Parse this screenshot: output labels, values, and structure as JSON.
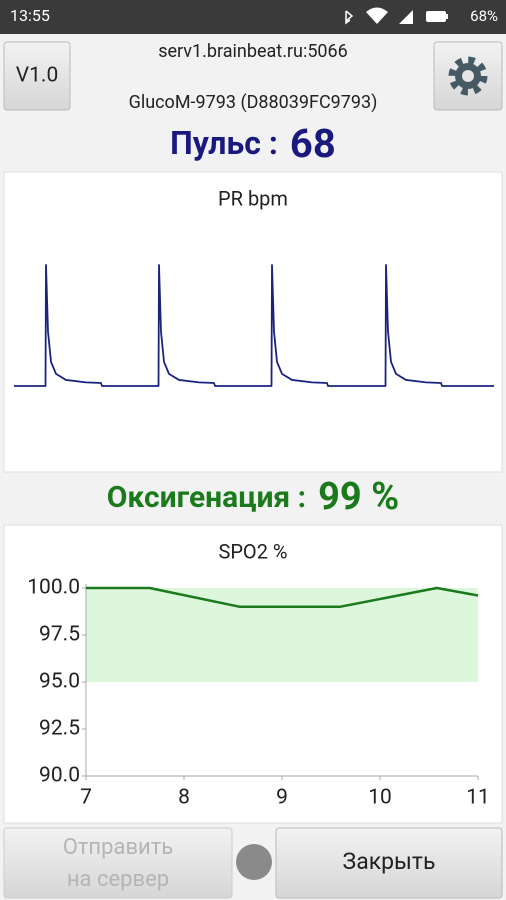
{
  "status_bar": {
    "time": "13:55",
    "battery": "68%"
  },
  "header": {
    "version_button": "V1.0",
    "server": "serv1.brainbeat.ru:5066",
    "device": "GlucoM-9793 (D88039FC9793)"
  },
  "pulse": {
    "label": "Пульс :",
    "value": 68
  },
  "oxygen": {
    "label": "Оксигенация :",
    "value": "99 %"
  },
  "buttons": {
    "send": [
      "Отправить",
      "на сервер"
    ],
    "close": "Закрыть"
  },
  "chart_data": [
    {
      "type": "line",
      "title": "PR bpm",
      "color": "#1a237e",
      "x": [
        0,
        31.5,
        32,
        34,
        37,
        42,
        52,
        72,
        87,
        88,
        144.5,
        145,
        147,
        150,
        155,
        165,
        185,
        200,
        201,
        257.5,
        258,
        260,
        263,
        268,
        278,
        298,
        313,
        314,
        371.5,
        372,
        374,
        377,
        382,
        392,
        412,
        427,
        428,
        480
      ],
      "values": [
        0,
        0,
        1,
        0.45,
        0.2,
        0.1,
        0.05,
        0.03,
        0.025,
        0,
        0,
        1,
        0.45,
        0.2,
        0.1,
        0.05,
        0.03,
        0.025,
        0,
        0,
        1,
        0.45,
        0.2,
        0.1,
        0.05,
        0.03,
        0.025,
        0,
        0,
        1,
        0.45,
        0.2,
        0.1,
        0.05,
        0.03,
        0.025,
        0,
        0
      ]
    },
    {
      "type": "line",
      "title": "SPO2 %",
      "color": "#1b7a1b",
      "x": [
        7,
        7.65,
        8.57,
        9.59,
        10.58,
        11
      ],
      "values": [
        100,
        100,
        99,
        99,
        100,
        99.6
      ],
      "fill_range": [
        95,
        100
      ],
      "fill_color": "#dcf7dc",
      "xlim": [
        7,
        11
      ],
      "ylim": [
        90,
        100
      ],
      "xticks": [
        7,
        8,
        9,
        10,
        11
      ],
      "yticks": [
        {
          "value": 90,
          "label": "90.0"
        },
        {
          "value": 92.5,
          "label": "92.5"
        },
        {
          "value": 95,
          "label": "95.0"
        },
        {
          "value": 97.5,
          "label": "97.5"
        },
        {
          "value": 100,
          "label": "100.0"
        }
      ],
      "grid": false
    }
  ]
}
